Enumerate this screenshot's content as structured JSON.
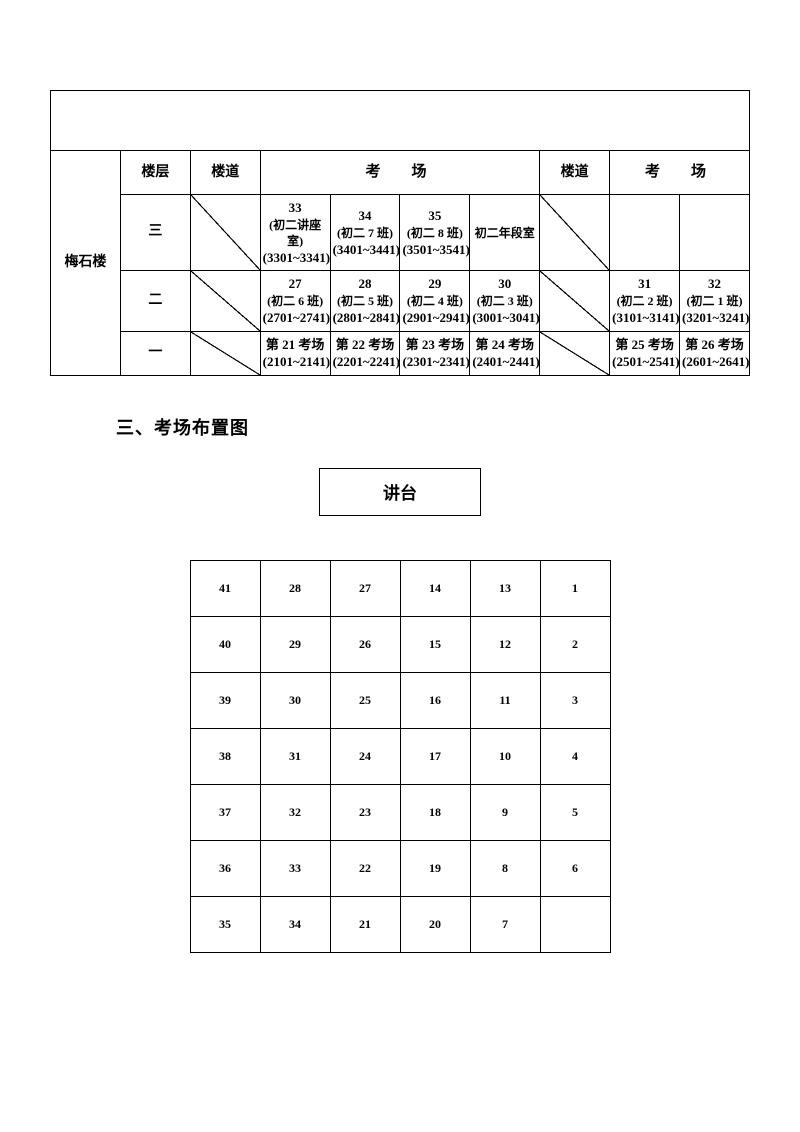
{
  "building": {
    "name_vertical": "梅石楼",
    "floor_header": "楼层",
    "corridor_header": "楼道",
    "exam_header": "考　场",
    "floors": {
      "三": [
        {
          "num": "33",
          "cls": "(初二讲座室)",
          "range": "(3301~3341)"
        },
        {
          "num": "34",
          "cls": "(初二 7 班)",
          "range": "(3401~3441)"
        },
        {
          "num": "35",
          "cls": "(初二 8 班)",
          "range": "(3501~3541)"
        },
        {
          "num": "",
          "cls": "初二年段室",
          "range": ""
        },
        {
          "num": "",
          "cls": "",
          "range": ""
        },
        {
          "num": "",
          "cls": "",
          "range": ""
        }
      ],
      "二": [
        {
          "num": "27",
          "cls": "(初二 6 班)",
          "range": "(2701~2741)"
        },
        {
          "num": "28",
          "cls": "(初二 5 班)",
          "range": "(2801~2841)"
        },
        {
          "num": "29",
          "cls": "(初二 4 班)",
          "range": "(2901~2941)"
        },
        {
          "num": "30",
          "cls": "(初二 3 班)",
          "range": "(3001~3041)"
        },
        {
          "num": "31",
          "cls": "(初二 2 班)",
          "range": "(3101~3141)"
        },
        {
          "num": "32",
          "cls": "(初二 1 班)",
          "range": "(3201~3241)"
        }
      ],
      "一": [
        {
          "num": "第 21 考场",
          "cls": "",
          "range": "(2101~2141)"
        },
        {
          "num": "第 22 考场",
          "cls": "",
          "range": "(2201~2241)"
        },
        {
          "num": "第 23 考场",
          "cls": "",
          "range": "(2301~2341)"
        },
        {
          "num": "第 24 考场",
          "cls": "",
          "range": "(2401~2441)"
        },
        {
          "num": "第 25 考场",
          "cls": "",
          "range": "(2501~2541)"
        },
        {
          "num": "第 26 考场",
          "cls": "",
          "range": "(2601~2641)"
        }
      ]
    }
  },
  "section_title": "三、考场布置图",
  "lectern": "讲台",
  "seats": [
    [
      "41",
      "28",
      "27",
      "14",
      "13",
      "1"
    ],
    [
      "40",
      "29",
      "26",
      "15",
      "12",
      "2"
    ],
    [
      "39",
      "30",
      "25",
      "16",
      "11",
      "3"
    ],
    [
      "38",
      "31",
      "24",
      "17",
      "10",
      "4"
    ],
    [
      "37",
      "32",
      "23",
      "18",
      "9",
      "5"
    ],
    [
      "36",
      "33",
      "22",
      "19",
      "8",
      "6"
    ],
    [
      "35",
      "34",
      "21",
      "20",
      "7",
      ""
    ]
  ],
  "style": {
    "text_color": "#000000",
    "border_color": "#000000",
    "bg_color": "#ffffff",
    "body_font_size": 13,
    "title_font_size": 18,
    "seat_font_size": 12
  }
}
